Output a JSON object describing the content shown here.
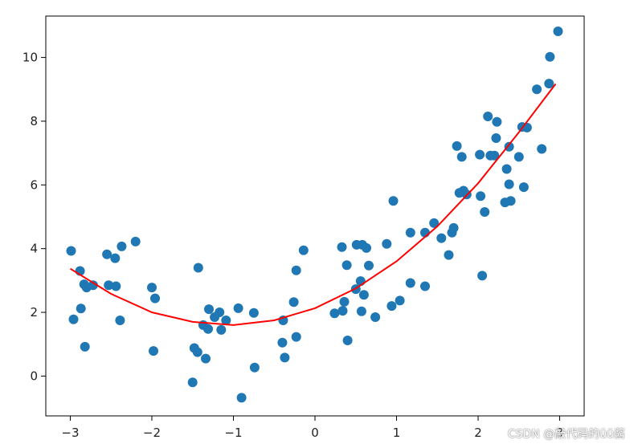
{
  "chart_data": {
    "type": "scatter",
    "title": "",
    "xlabel": "",
    "ylabel": "",
    "xlim": [
      -3.3,
      3.3
    ],
    "ylim": [
      -1.25,
      11.3
    ],
    "xticks": [
      -3,
      -2,
      -1,
      0,
      1,
      2,
      3
    ],
    "yticks": [
      0,
      2,
      4,
      6,
      8,
      10
    ],
    "grid": false,
    "legend": "none",
    "series": [
      {
        "kind": "scatter",
        "color": "#1f77b4",
        "points": [
          [
            -2.99,
            3.93
          ],
          [
            -2.96,
            1.78
          ],
          [
            -2.88,
            3.3
          ],
          [
            -2.87,
            2.12
          ],
          [
            -2.83,
            2.88
          ],
          [
            -2.82,
            0.92
          ],
          [
            -2.8,
            2.78
          ],
          [
            -2.72,
            2.85
          ],
          [
            -2.55,
            3.82
          ],
          [
            -2.53,
            2.85
          ],
          [
            -2.45,
            3.7
          ],
          [
            -2.44,
            2.82
          ],
          [
            -2.39,
            1.75
          ],
          [
            -2.37,
            4.07
          ],
          [
            -2.2,
            4.22
          ],
          [
            -2.0,
            2.78
          ],
          [
            -1.98,
            0.79
          ],
          [
            -1.96,
            2.44
          ],
          [
            -1.5,
            -0.2
          ],
          [
            -1.48,
            0.88
          ],
          [
            -1.44,
            0.75
          ],
          [
            -1.43,
            3.4
          ],
          [
            -1.37,
            1.6
          ],
          [
            -1.34,
            0.55
          ],
          [
            -1.31,
            1.48
          ],
          [
            -1.3,
            2.1
          ],
          [
            -1.23,
            1.85
          ],
          [
            -1.17,
            2.0
          ],
          [
            -1.15,
            1.45
          ],
          [
            -1.09,
            1.75
          ],
          [
            -0.94,
            2.13
          ],
          [
            -0.9,
            -0.68
          ],
          [
            -0.75,
            1.98
          ],
          [
            -0.74,
            0.27
          ],
          [
            -0.4,
            1.05
          ],
          [
            -0.39,
            1.75
          ],
          [
            -0.37,
            0.58
          ],
          [
            -0.26,
            2.32
          ],
          [
            -0.23,
            3.32
          ],
          [
            -0.23,
            1.23
          ],
          [
            -0.14,
            3.95
          ],
          [
            0.24,
            1.97
          ],
          [
            0.33,
            4.05
          ],
          [
            0.34,
            2.05
          ],
          [
            0.36,
            2.33
          ],
          [
            0.39,
            3.48
          ],
          [
            0.4,
            1.12
          ],
          [
            0.5,
            2.73
          ],
          [
            0.51,
            4.12
          ],
          [
            0.56,
            2.98
          ],
          [
            0.57,
            2.03
          ],
          [
            0.58,
            4.12
          ],
          [
            0.6,
            2.55
          ],
          [
            0.63,
            4.02
          ],
          [
            0.66,
            3.47
          ],
          [
            0.74,
            1.85
          ],
          [
            0.88,
            4.15
          ],
          [
            0.94,
            2.2
          ],
          [
            0.96,
            5.5
          ],
          [
            1.04,
            2.37
          ],
          [
            1.17,
            4.5
          ],
          [
            1.17,
            2.92
          ],
          [
            1.35,
            2.82
          ],
          [
            1.35,
            4.5
          ],
          [
            1.46,
            4.8
          ],
          [
            1.55,
            4.33
          ],
          [
            1.64,
            3.8
          ],
          [
            1.68,
            4.5
          ],
          [
            1.7,
            4.65
          ],
          [
            1.74,
            7.22
          ],
          [
            1.77,
            5.75
          ],
          [
            1.8,
            6.88
          ],
          [
            1.82,
            5.82
          ],
          [
            1.86,
            5.7
          ],
          [
            2.02,
            6.95
          ],
          [
            2.03,
            5.65
          ],
          [
            2.05,
            3.15
          ],
          [
            2.08,
            5.15
          ],
          [
            2.12,
            8.15
          ],
          [
            2.15,
            6.92
          ],
          [
            2.2,
            6.92
          ],
          [
            2.22,
            7.47
          ],
          [
            2.23,
            7.98
          ],
          [
            2.33,
            5.45
          ],
          [
            2.35,
            6.5
          ],
          [
            2.38,
            7.2
          ],
          [
            2.38,
            6.02
          ],
          [
            2.4,
            5.5
          ],
          [
            2.5,
            6.88
          ],
          [
            2.54,
            7.82
          ],
          [
            2.56,
            5.93
          ],
          [
            2.6,
            7.8
          ],
          [
            2.72,
            9.0
          ],
          [
            2.78,
            7.13
          ],
          [
            2.87,
            9.18
          ],
          [
            2.88,
            10.02
          ],
          [
            2.98,
            10.82
          ]
        ]
      },
      {
        "kind": "line",
        "color": "#ff0000",
        "fit": "quadratic",
        "x": [
          -3.0,
          -2.5,
          -2.0,
          -1.5,
          -1.0,
          -0.5,
          0.0,
          0.5,
          1.0,
          1.5,
          2.0,
          2.5,
          2.95
        ],
        "y": [
          3.37,
          2.58,
          2.0,
          1.7,
          1.6,
          1.75,
          2.13,
          2.75,
          3.6,
          4.7,
          6.05,
          7.65,
          9.17
        ]
      }
    ]
  },
  "watermark": "CSDN @敲代码的üü酱"
}
